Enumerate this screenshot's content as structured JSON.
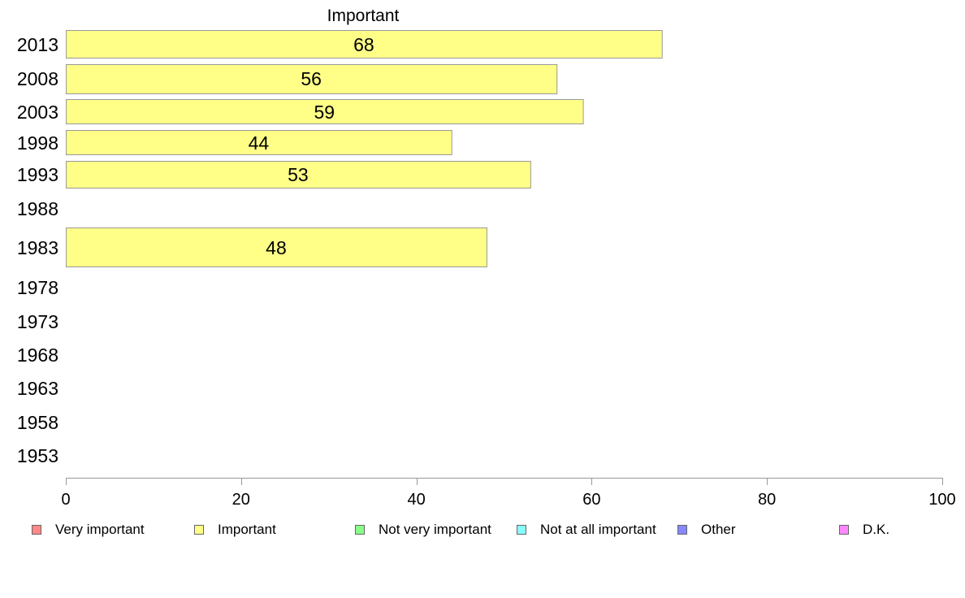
{
  "chart_data": {
    "type": "bar",
    "orientation": "horizontal",
    "title": "Important",
    "categories": [
      "2013",
      "2008",
      "2003",
      "1998",
      "1993",
      "1988",
      "1983",
      "1978",
      "1973",
      "1968",
      "1963",
      "1958",
      "1953"
    ],
    "series": [
      {
        "name": "Important",
        "values": [
          68,
          56,
          59,
          44,
          53,
          null,
          48,
          null,
          null,
          null,
          null,
          null,
          null
        ]
      }
    ],
    "data_labels": [
      "68",
      "56",
      "59",
      "44",
      "53",
      "",
      "48",
      "",
      "",
      "",
      "",
      "",
      ""
    ],
    "xlim": [
      0,
      100
    ],
    "xticks": [
      0,
      20,
      40,
      60,
      80,
      100
    ],
    "bar_color": "#ffff88",
    "bar_border_color": "#999999",
    "axis_color": "#999999",
    "legend": [
      {
        "label": "Very important",
        "color": "#ff8888"
      },
      {
        "label": "Important",
        "color": "#ffff88"
      },
      {
        "label": "Not very important",
        "color": "#88ff88"
      },
      {
        "label": "Not at all important",
        "color": "#88ffff"
      },
      {
        "label": "Other",
        "color": "#8888ff"
      },
      {
        "label": "D.K.",
        "color": "#ff88ff"
      }
    ],
    "legend_position": "bottom"
  }
}
